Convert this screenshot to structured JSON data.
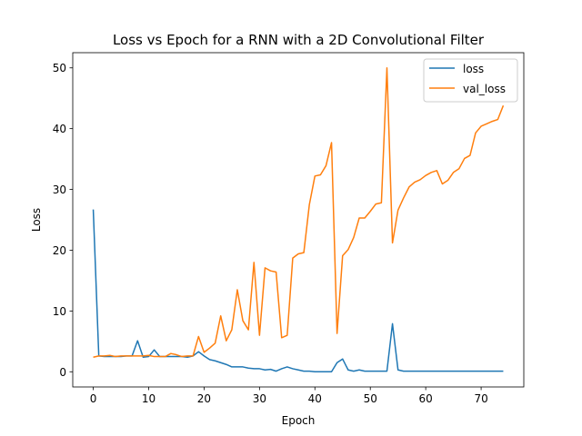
{
  "chart_data": {
    "type": "line",
    "title": "Loss vs Epoch for a RNN with a 2D Convolutional Filter",
    "xlabel": "Epoch",
    "ylabel": "Loss",
    "xlim": [
      -3.7,
      77.7
    ],
    "ylim": [
      -2.5,
      52.5
    ],
    "xticks": [
      0,
      10,
      20,
      30,
      40,
      50,
      60,
      70
    ],
    "yticks": [
      0,
      10,
      20,
      30,
      40,
      50
    ],
    "grid": false,
    "legend": "top-right",
    "series": [
      {
        "name": "loss",
        "color": "#1f77b4",
        "x": [
          0,
          1,
          2,
          3,
          4,
          5,
          6,
          7,
          8,
          9,
          10,
          11,
          12,
          13,
          14,
          15,
          16,
          17,
          18,
          19,
          20,
          21,
          22,
          23,
          24,
          25,
          26,
          27,
          28,
          29,
          30,
          31,
          32,
          33,
          34,
          35,
          36,
          37,
          38,
          39,
          40,
          41,
          42,
          43,
          44,
          45,
          46,
          47,
          48,
          49,
          50,
          51,
          52,
          53,
          54,
          55,
          56,
          57,
          58,
          59,
          60,
          61,
          62,
          63,
          64,
          65,
          66,
          67,
          68,
          69,
          70,
          71,
          72,
          73,
          74
        ],
        "y": [
          26.7,
          2.6,
          2.5,
          2.5,
          2.5,
          2.5,
          2.6,
          2.6,
          5.1,
          2.4,
          2.5,
          3.6,
          2.5,
          2.5,
          2.5,
          2.5,
          2.5,
          2.4,
          2.6,
          3.3,
          2.6,
          2.0,
          1.8,
          1.5,
          1.2,
          0.8,
          0.8,
          0.8,
          0.6,
          0.5,
          0.5,
          0.3,
          0.4,
          0.1,
          0.5,
          0.8,
          0.5,
          0.3,
          0.1,
          0.1,
          0.0,
          0.0,
          0.0,
          0.0,
          1.5,
          2.1,
          0.3,
          0.1,
          0.3,
          0.1,
          0.1,
          0.1,
          0.1,
          0.1,
          7.9,
          0.3,
          0.1,
          0.1,
          0.1,
          0.1,
          0.1,
          0.1,
          0.1,
          0.1,
          0.1,
          0.1,
          0.1,
          0.1,
          0.1,
          0.1,
          0.1,
          0.1,
          0.1,
          0.1,
          0.1
        ]
      },
      {
        "name": "val_loss",
        "color": "#ff7f0e",
        "x": [
          0,
          1,
          2,
          3,
          4,
          5,
          6,
          7,
          8,
          9,
          10,
          11,
          12,
          13,
          14,
          15,
          16,
          17,
          18,
          19,
          20,
          21,
          22,
          23,
          24,
          25,
          26,
          27,
          28,
          29,
          30,
          31,
          32,
          33,
          34,
          35,
          36,
          37,
          38,
          39,
          40,
          41,
          42,
          43,
          44,
          45,
          46,
          47,
          48,
          49,
          50,
          51,
          52,
          53,
          54,
          55,
          56,
          57,
          58,
          59,
          60,
          61,
          62,
          63,
          64,
          65,
          66,
          67,
          68,
          69,
          70,
          71,
          72,
          73,
          74
        ],
        "y": [
          2.4,
          2.6,
          2.6,
          2.7,
          2.5,
          2.6,
          2.6,
          2.6,
          2.6,
          2.6,
          2.7,
          2.5,
          2.5,
          2.5,
          3.0,
          2.8,
          2.5,
          2.6,
          2.6,
          5.8,
          3.2,
          3.9,
          4.7,
          9.2,
          5.1,
          6.9,
          13.5,
          8.4,
          6.9,
          18.0,
          6.0,
          17.1,
          16.6,
          16.4,
          5.6,
          6.0,
          18.7,
          19.4,
          19.6,
          27.5,
          32.2,
          32.4,
          33.9,
          37.7,
          6.3,
          19.1,
          20.1,
          22.1,
          25.3,
          25.3,
          26.4,
          27.6,
          27.8,
          50.0,
          21.2,
          26.6,
          28.6,
          30.4,
          31.2,
          31.6,
          32.3,
          32.8,
          33.1,
          30.9,
          31.5,
          32.8,
          33.4,
          35.1,
          35.6,
          39.3,
          40.4,
          40.8,
          41.2,
          41.5,
          43.8
        ]
      }
    ]
  }
}
